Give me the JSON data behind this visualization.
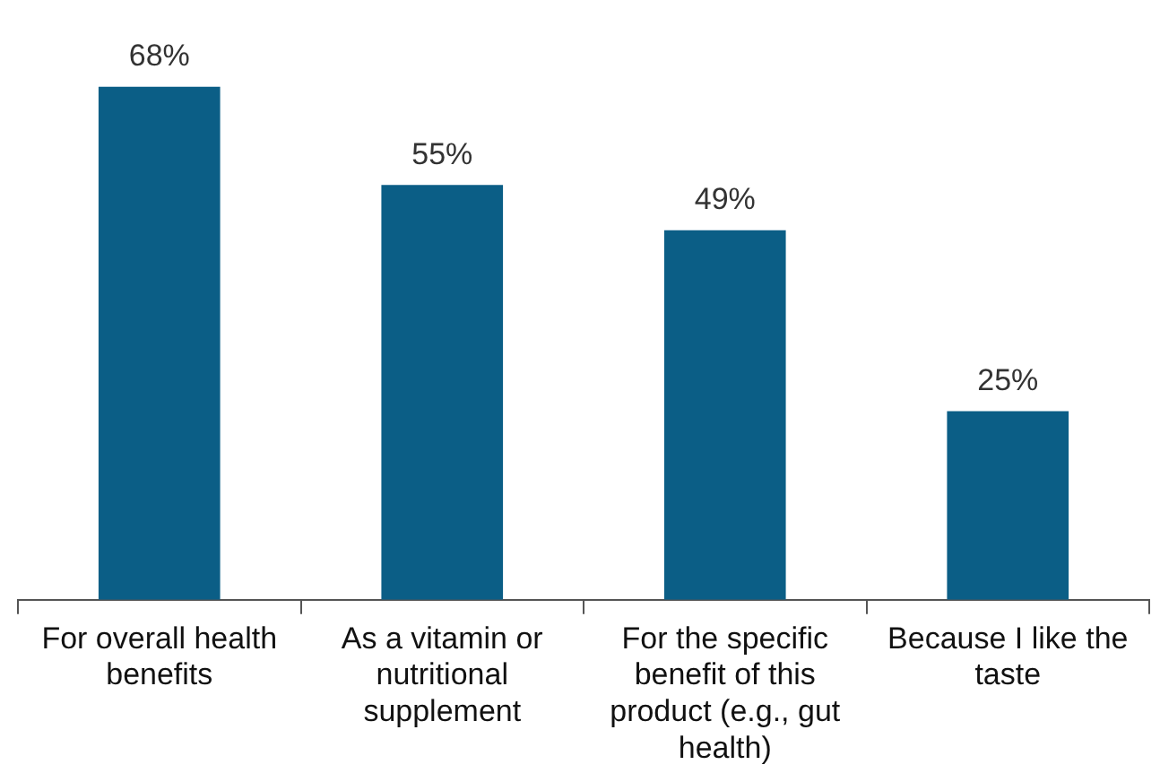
{
  "chart_data": {
    "type": "bar",
    "categories": [
      "For overall health benefits",
      "As a vitamin or nutritional supplement",
      "For the specific benefit of this product (e.g., gut health)",
      "Because I like the taste"
    ],
    "values": [
      68,
      55,
      49,
      25
    ],
    "color": "#0b5e86",
    "data_labels": true,
    "value_labels": [
      "68%",
      "55%",
      "49%",
      "25%"
    ],
    "tick_labels": "x",
    "grid": false,
    "legend": false
  }
}
